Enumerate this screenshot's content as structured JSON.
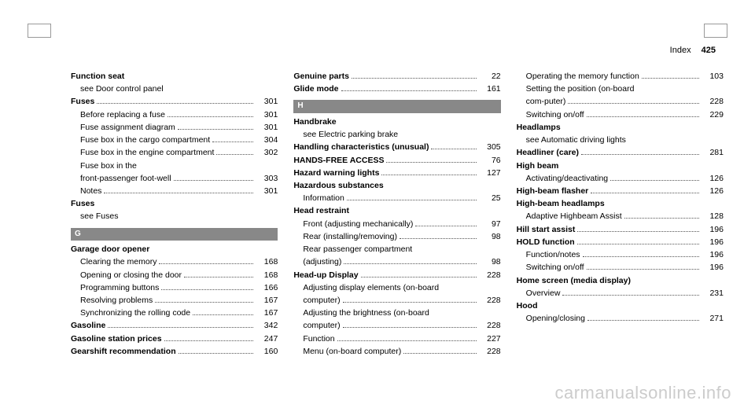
{
  "header": {
    "title": "Index",
    "page": "425"
  },
  "watermark": "carmanualsonline.info",
  "columns": [
    {
      "items": [
        {
          "type": "heading",
          "label": "Function seat"
        },
        {
          "type": "see",
          "label": "see Door control panel"
        },
        {
          "type": "entry",
          "bold": true,
          "label": "Fuses",
          "page": "301"
        },
        {
          "type": "entry",
          "sub": true,
          "label": "Before replacing a fuse",
          "page": "301"
        },
        {
          "type": "entry",
          "sub": true,
          "label": "Fuse assignment diagram",
          "page": "301"
        },
        {
          "type": "entry",
          "sub": true,
          "label": "Fuse box in the cargo compartment",
          "page": "304"
        },
        {
          "type": "entry",
          "sub": true,
          "label": "Fuse box in the engine compartment",
          "page": "302"
        },
        {
          "type": "entry",
          "sub": true,
          "label": "Fuse box in the front-passenger foot-well",
          "page": "303",
          "wrap": true
        },
        {
          "type": "entry",
          "sub": true,
          "label": "Notes",
          "page": "301"
        },
        {
          "type": "heading",
          "label": "Fuses"
        },
        {
          "type": "see",
          "label": "see Fuses"
        },
        {
          "type": "letter",
          "label": "G"
        },
        {
          "type": "heading",
          "label": "Garage door opener"
        },
        {
          "type": "entry",
          "sub": true,
          "label": "Clearing the memory",
          "page": "168"
        },
        {
          "type": "entry",
          "sub": true,
          "label": "Opening or closing the door",
          "page": "168"
        },
        {
          "type": "entry",
          "sub": true,
          "label": "Programming buttons",
          "page": "166"
        },
        {
          "type": "entry",
          "sub": true,
          "label": "Resolving problems",
          "page": "167"
        },
        {
          "type": "entry",
          "sub": true,
          "label": "Synchronizing the rolling code",
          "page": "167"
        },
        {
          "type": "entry",
          "bold": true,
          "label": "Gasoline",
          "page": "342"
        },
        {
          "type": "entry",
          "bold": true,
          "label": "Gasoline station prices",
          "page": "247"
        },
        {
          "type": "entry",
          "bold": true,
          "label": "Gearshift recommendation",
          "page": "160"
        }
      ]
    },
    {
      "items": [
        {
          "type": "entry",
          "bold": true,
          "label": "Genuine parts",
          "page": "22"
        },
        {
          "type": "entry",
          "bold": true,
          "label": "Glide mode",
          "page": "161"
        },
        {
          "type": "letter",
          "label": "H"
        },
        {
          "type": "heading",
          "label": "Handbrake"
        },
        {
          "type": "see",
          "label": "see Electric parking brake"
        },
        {
          "type": "entry",
          "bold": true,
          "label": "Handling characteristics (unusual)",
          "page": "305"
        },
        {
          "type": "entry",
          "bold": true,
          "label": "HANDS-FREE ACCESS",
          "page": "76"
        },
        {
          "type": "entry",
          "bold": true,
          "label": "Hazard warning lights",
          "page": "127"
        },
        {
          "type": "heading",
          "label": "Hazardous substances"
        },
        {
          "type": "entry",
          "sub": true,
          "label": "Information",
          "page": "25"
        },
        {
          "type": "heading",
          "label": "Head restraint"
        },
        {
          "type": "entry",
          "sub": true,
          "label": "Front (adjusting mechanically)",
          "page": "97"
        },
        {
          "type": "entry",
          "sub": true,
          "label": "Rear (installing/removing)",
          "page": "98"
        },
        {
          "type": "entry",
          "sub": true,
          "label": "Rear passenger compartment (adjusting)",
          "page": "98",
          "wrap": true
        },
        {
          "type": "entry",
          "bold": true,
          "label": "Head-up Display",
          "page": "228"
        },
        {
          "type": "entry",
          "sub": true,
          "label": "Adjusting display elements (on-board computer)",
          "page": "228",
          "wrap": true
        },
        {
          "type": "entry",
          "sub": true,
          "label": "Adjusting the brightness (on-board computer)",
          "page": "228",
          "wrap": true
        },
        {
          "type": "entry",
          "sub": true,
          "label": "Function",
          "page": "227"
        },
        {
          "type": "entry",
          "sub": true,
          "label": "Menu (on-board computer)",
          "page": "228"
        }
      ]
    },
    {
      "items": [
        {
          "type": "entry",
          "sub": true,
          "label": "Operating the memory function",
          "page": "103"
        },
        {
          "type": "entry",
          "sub": true,
          "label": "Setting the position (on-board com-puter)",
          "page": "228",
          "wrap": true
        },
        {
          "type": "entry",
          "sub": true,
          "label": "Switching on/off",
          "page": "229"
        },
        {
          "type": "heading",
          "label": "Headlamps"
        },
        {
          "type": "see",
          "label": "see Automatic driving lights"
        },
        {
          "type": "entry",
          "bold": true,
          "label": "Headliner (care)",
          "page": "281"
        },
        {
          "type": "heading",
          "label": "High beam"
        },
        {
          "type": "entry",
          "sub": true,
          "label": "Activating/deactivating",
          "page": "126"
        },
        {
          "type": "entry",
          "bold": true,
          "label": "High-beam flasher",
          "page": "126"
        },
        {
          "type": "heading",
          "label": "High-beam headlamps"
        },
        {
          "type": "entry",
          "sub": true,
          "label": "Adaptive Highbeam Assist",
          "page": "128"
        },
        {
          "type": "entry",
          "bold": true,
          "label": "Hill start assist",
          "page": "196"
        },
        {
          "type": "entry",
          "bold": true,
          "label": "HOLD function",
          "page": "196"
        },
        {
          "type": "entry",
          "sub": true,
          "label": "Function/notes",
          "page": "196"
        },
        {
          "type": "entry",
          "sub": true,
          "label": "Switching on/off",
          "page": "196"
        },
        {
          "type": "heading",
          "label": "Home screen (media display)"
        },
        {
          "type": "entry",
          "sub": true,
          "label": "Overview",
          "page": "231"
        },
        {
          "type": "heading",
          "label": "Hood"
        },
        {
          "type": "entry",
          "sub": true,
          "label": "Opening/closing",
          "page": "271"
        }
      ]
    }
  ]
}
